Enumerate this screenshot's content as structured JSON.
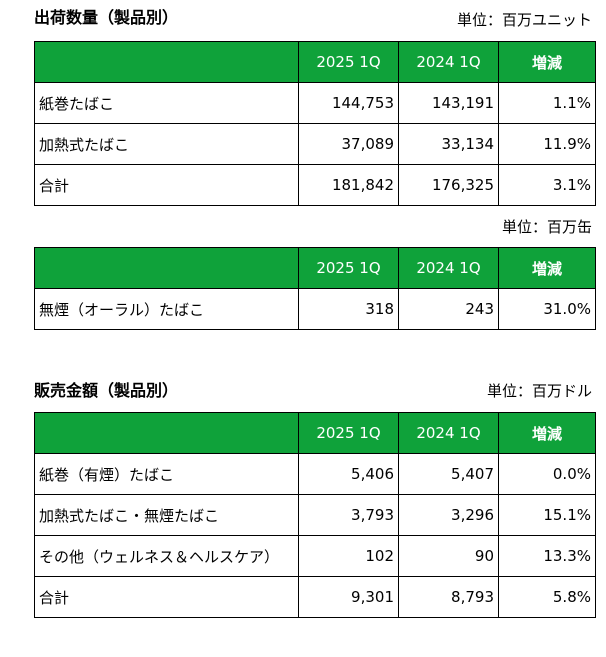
{
  "shipment": {
    "title": "出荷数量（製品別）",
    "unit": "単位：百万ユニット",
    "header": [
      "",
      "2025 1Q",
      "2024 1Q",
      "増減"
    ],
    "rows": [
      [
        "紙巻たばこ",
        "144,753",
        "143,191",
        "1.1%"
      ],
      [
        "加熱式たばこ",
        "37,089",
        "33,134",
        "11.9%"
      ],
      [
        "合計",
        "181,842",
        "176,325",
        "3.1%"
      ]
    ]
  },
  "oral": {
    "unit": "単位：百万缶",
    "header": [
      "",
      "2025 1Q",
      "2024 1Q",
      "増減"
    ],
    "rows": [
      [
        "無煙（オーラル）たばこ",
        "318",
        "243",
        "31.0%"
      ]
    ]
  },
  "sales": {
    "title": "販売金額（製品別）",
    "unit": "単位：百万ドル",
    "header": [
      "",
      "2025 1Q",
      "2024 1Q",
      "増減"
    ],
    "rows": [
      [
        "紙巻（有煙）たばこ",
        "5,406",
        "5,407",
        "0.0%"
      ],
      [
        "加熱式たばこ・無煙たばこ",
        "3,793",
        "3,296",
        "15.1%"
      ],
      [
        "その他（ウェルネス＆ヘルスケア）",
        "102",
        "90",
        "13.3%"
      ],
      [
        "合計",
        "9,301",
        "8,793",
        "5.8%"
      ]
    ]
  },
  "colors": {
    "header_green": "#0fa23a",
    "header_text": "#ffffff",
    "border": "#000000"
  }
}
